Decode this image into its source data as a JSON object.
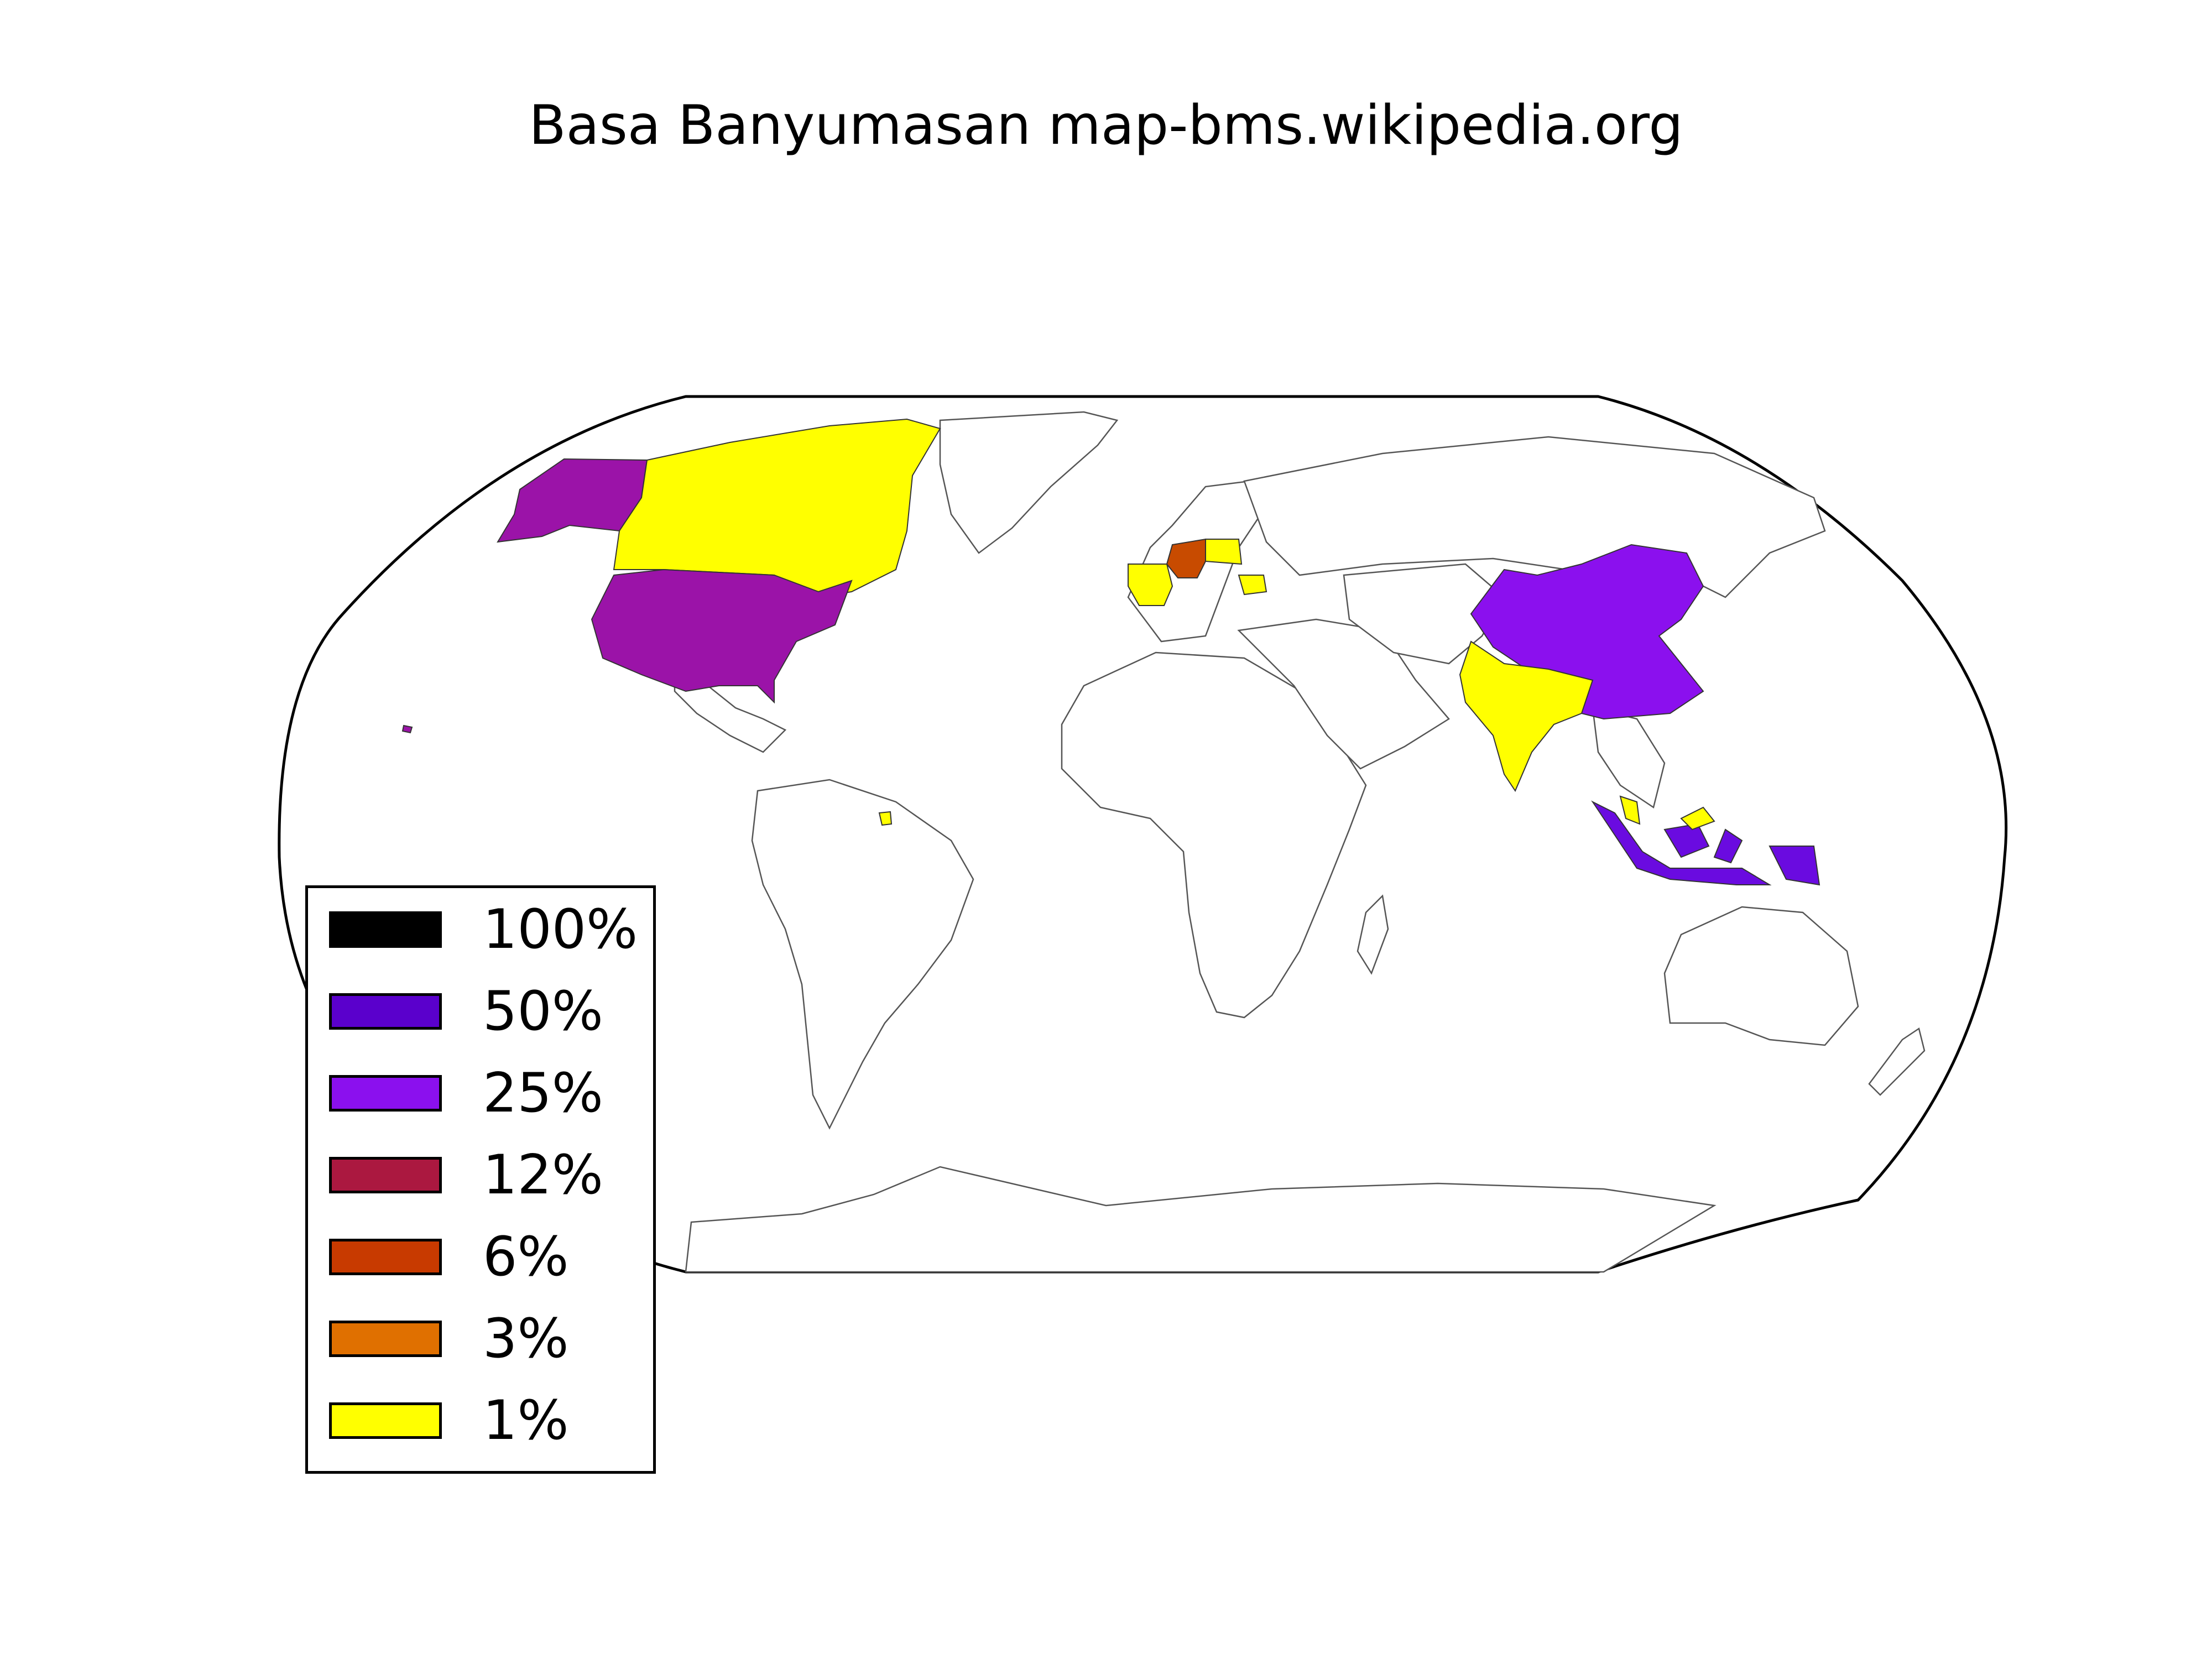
{
  "title": "Basa Banyumasan map-bms.wikipedia.org",
  "legend": {
    "items": [
      {
        "label": "100%",
        "color": "#000000"
      },
      {
        "label": "50%",
        "color": "#5a00cc"
      },
      {
        "label": "25%",
        "color": "#8b10ee"
      },
      {
        "label": "12%",
        "color": "#ab1840"
      },
      {
        "label": "6%",
        "color": "#c83a00"
      },
      {
        "label": "3%",
        "color": "#e07000"
      },
      {
        "label": "1%",
        "color": "#ffff00"
      }
    ]
  },
  "regions": [
    {
      "name": "Alaska",
      "color": "#9b13a8"
    },
    {
      "name": "United States",
      "color": "#9b13a8"
    },
    {
      "name": "Canada",
      "color": "#ffff00"
    },
    {
      "name": "Germany",
      "color": "#c84b00"
    },
    {
      "name": "France",
      "color": "#ffff00"
    },
    {
      "name": "Poland",
      "color": "#ffff00"
    },
    {
      "name": "Hungary",
      "color": "#ffff00"
    },
    {
      "name": "China",
      "color": "#8b10ee"
    },
    {
      "name": "India",
      "color": "#ffff00"
    },
    {
      "name": "Indonesia",
      "color": "#6a0be0"
    },
    {
      "name": "Malaysia",
      "color": "#ffff00"
    },
    {
      "name": "Suriname",
      "color": "#ffff00"
    }
  ]
}
